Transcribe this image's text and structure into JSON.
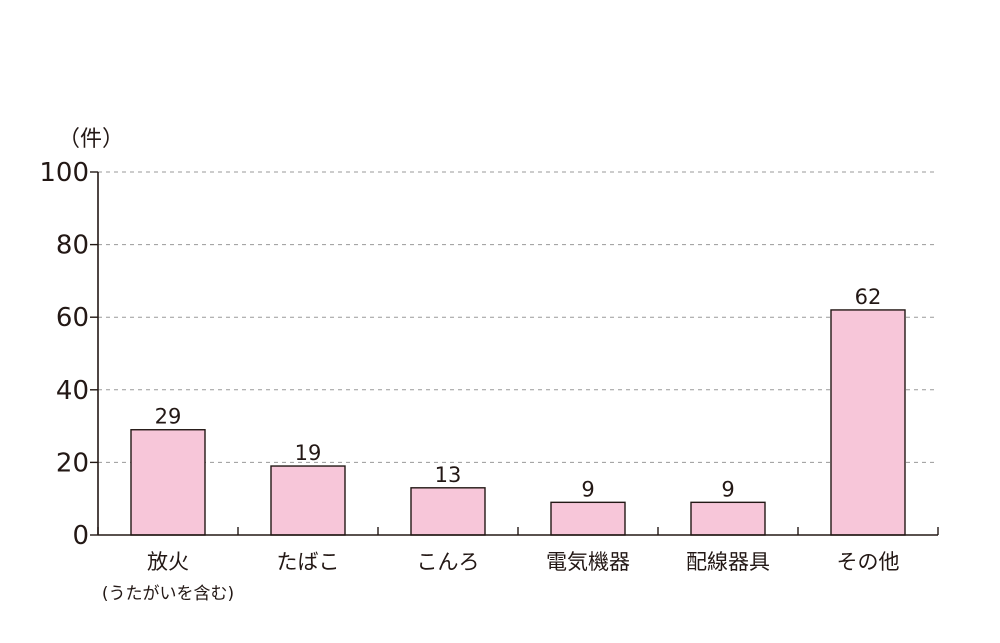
{
  "chart_data": {
    "type": "bar",
    "unit_label": "（件）",
    "categories": [
      "放火",
      "たばこ",
      "こんろ",
      "電気機器",
      "配線器具",
      "その他"
    ],
    "category_sublabels": [
      "(うたがいを含む)",
      "",
      "",
      "",
      "",
      ""
    ],
    "values": [
      29,
      19,
      13,
      9,
      9,
      62
    ],
    "data_labels": [
      "29",
      "19",
      "13",
      "9",
      "9",
      "62"
    ],
    "ylim": [
      0,
      100
    ],
    "yticks": [
      0,
      20,
      40,
      60,
      80,
      100
    ],
    "ytick_labels": [
      "0",
      "20",
      "40",
      "60",
      "80",
      "100"
    ],
    "grid": true,
    "legend": "none",
    "colors": {
      "bar_fill": "#f7c6d9",
      "bar_stroke": "#231815",
      "axis": "#231815",
      "grid": "#9a9a9a"
    }
  }
}
